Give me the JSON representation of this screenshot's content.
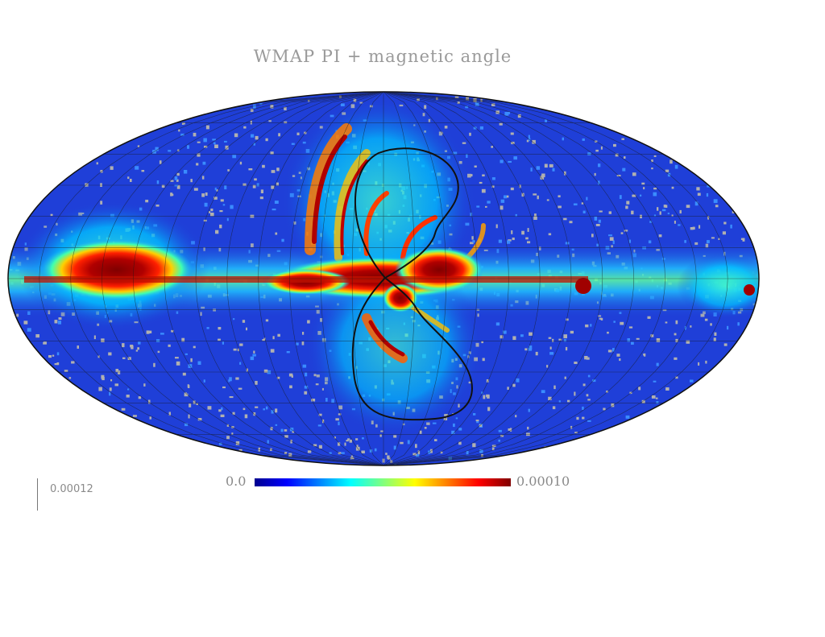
{
  "title": "WMAP PI + magnetic angle",
  "colorbar": {
    "min_label": "0.0",
    "max_label": "0.00010",
    "colors": [
      "#00008f",
      "#0000ff",
      "#0080ff",
      "#00ffff",
      "#80ff80",
      "#ffff00",
      "#ff8000",
      "#ff0000",
      "#800000"
    ]
  },
  "scale": {
    "label": "0.00012"
  },
  "map": {
    "projection": "mollweide",
    "background_color": "#1f3fd8",
    "grid": true,
    "noise_color": "#b0b0b0"
  }
}
